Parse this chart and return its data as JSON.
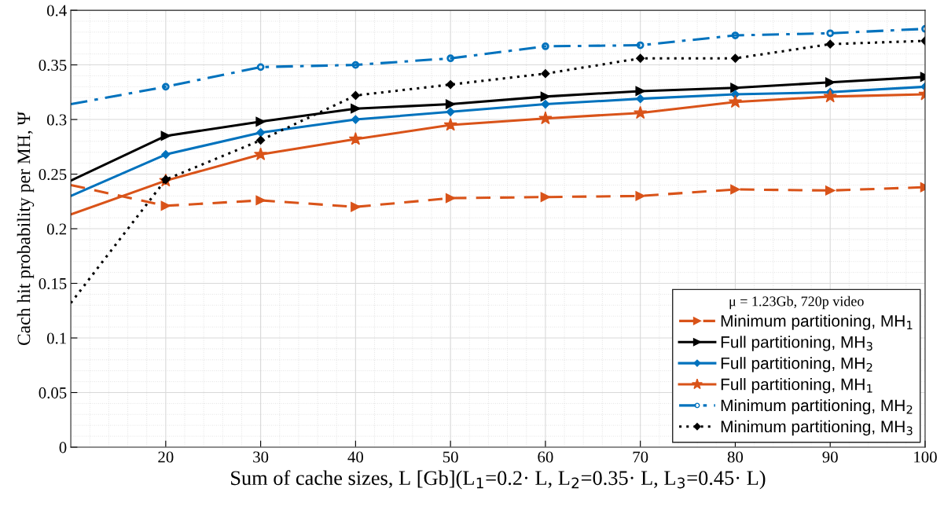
{
  "chart_data": {
    "type": "line",
    "xlabel": "Sum of cache sizes, L [Gb](L$_{1}$=0.2· L, L$_{2}$=0.35· L, L$_{3}$=0.45· L)",
    "ylabel": "Cach hit probability per MH, Ψ",
    "legend_title": "μ = 1.23Gb, 720p video",
    "x": [
      10,
      20,
      30,
      40,
      50,
      60,
      70,
      80,
      90,
      100
    ],
    "xlim": [
      10,
      100
    ],
    "xticks": [
      20,
      30,
      40,
      50,
      60,
      70,
      80,
      90,
      100
    ],
    "ylim": [
      0,
      0.4
    ],
    "yticks": [
      0,
      0.05,
      0.1,
      0.15,
      0.2,
      0.25,
      0.3,
      0.35,
      0.4
    ],
    "grid": true,
    "legend": "bottom right",
    "series": [
      {
        "name": "Minimum partitioning, MH$_{1}$",
        "color": "#d95319",
        "marker": "triangle",
        "line_style": "dashed",
        "values": [
          0.24,
          0.221,
          0.226,
          0.22,
          0.228,
          0.229,
          0.23,
          0.236,
          0.235,
          0.238
        ]
      },
      {
        "name": "Full partitioning, MH$_{3}$",
        "color": "#000000",
        "marker": "triangle",
        "line_style": "solid",
        "values": [
          0.244,
          0.285,
          0.298,
          0.31,
          0.314,
          0.321,
          0.326,
          0.329,
          0.334,
          0.339
        ]
      },
      {
        "name": "Full partitioning, MH$_{2}$",
        "color": "#0072bd",
        "marker": "diamond",
        "line_style": "solid",
        "values": [
          0.23,
          0.268,
          0.288,
          0.3,
          0.307,
          0.314,
          0.319,
          0.323,
          0.325,
          0.33
        ]
      },
      {
        "name": "Full partitioning, MH$_{1}$",
        "color": "#d95319",
        "marker": "star",
        "line_style": "solid",
        "values": [
          0.213,
          0.244,
          0.268,
          0.282,
          0.295,
          0.301,
          0.306,
          0.316,
          0.321,
          0.323
        ]
      },
      {
        "name": "Minimum partitioning, MH$_{2}$",
        "color": "#0072bd",
        "marker": "circle",
        "line_style": "dashdot",
        "values": [
          0.314,
          0.33,
          0.348,
          0.35,
          0.356,
          0.367,
          0.368,
          0.377,
          0.379,
          0.383
        ]
      },
      {
        "name": "Minimum partitioning, MH$_{3}$",
        "color": "#000000",
        "marker": "diamond",
        "line_style": "dotted",
        "values": [
          0.132,
          0.245,
          0.281,
          0.322,
          0.332,
          0.342,
          0.356,
          0.356,
          0.369,
          0.372
        ]
      }
    ]
  }
}
